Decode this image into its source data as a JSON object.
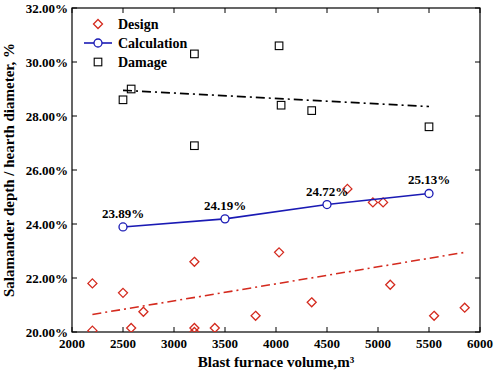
{
  "chart_data": {
    "type": "scatter",
    "x_label": "Blast furnace volume,m³",
    "y_label": "Salamander depth / hearth diameter, %",
    "xlim": [
      2000,
      6000
    ],
    "xticks": [
      2000,
      2500,
      3000,
      3500,
      4000,
      4500,
      5000,
      5500,
      6000
    ],
    "ylim": [
      20,
      32
    ],
    "yticks": [
      {
        "value": 20,
        "label": "20.00%"
      },
      {
        "value": 22,
        "label": "22.00%"
      },
      {
        "value": 24,
        "label": "24.00%"
      },
      {
        "value": 26,
        "label": "26.00%"
      },
      {
        "value": 28,
        "label": "28.00%"
      },
      {
        "value": 30,
        "label": "30.00%"
      },
      {
        "value": 32,
        "label": "32.00%"
      }
    ],
    "grid": false,
    "legend": "upper left",
    "series": [
      {
        "name": "Design",
        "type": "scatter",
        "marker": "diamond",
        "color": "#d42a1e",
        "x": [
          2200,
          2200,
          2500,
          2580,
          2700,
          3200,
          3200,
          3200,
          3400,
          3800,
          4030,
          4350,
          4700,
          4950,
          5050,
          5120,
          5550,
          5850
        ],
        "values": [
          21.8,
          20.05,
          21.45,
          20.15,
          20.75,
          22.6,
          20.15,
          20.0,
          20.15,
          20.6,
          22.95,
          21.1,
          25.3,
          24.8,
          24.8,
          21.75,
          20.6,
          20.9
        ]
      },
      {
        "name": "Calculation",
        "type": "line",
        "marker": "circle",
        "color": "#1a1ab4",
        "x": [
          2500,
          3500,
          4500,
          5500
        ],
        "values": [
          23.89,
          24.19,
          24.72,
          25.13
        ],
        "data_labels": true,
        "value_labels": [
          "23.89%",
          "24.19%",
          "24.72%",
          "25.13%"
        ]
      },
      {
        "name": "Damage",
        "type": "scatter",
        "marker": "square",
        "color": "#000000",
        "x": [
          2500,
          2580,
          3200,
          3200,
          4030,
          4050,
          4350,
          5500
        ],
        "values": [
          28.6,
          29.0,
          30.3,
          26.9,
          30.6,
          28.4,
          28.2,
          27.6
        ]
      },
      {
        "type": "line",
        "marker": "none",
        "line_style": "dashdot",
        "color": "#d42a1e",
        "x": [
          2200,
          5850
        ],
        "values": [
          20.65,
          22.95
        ]
      },
      {
        "type": "line",
        "marker": "none",
        "line_style": "dashdot",
        "color": "#000000",
        "x": [
          2500,
          5500
        ],
        "values": [
          28.95,
          28.35
        ]
      }
    ]
  }
}
